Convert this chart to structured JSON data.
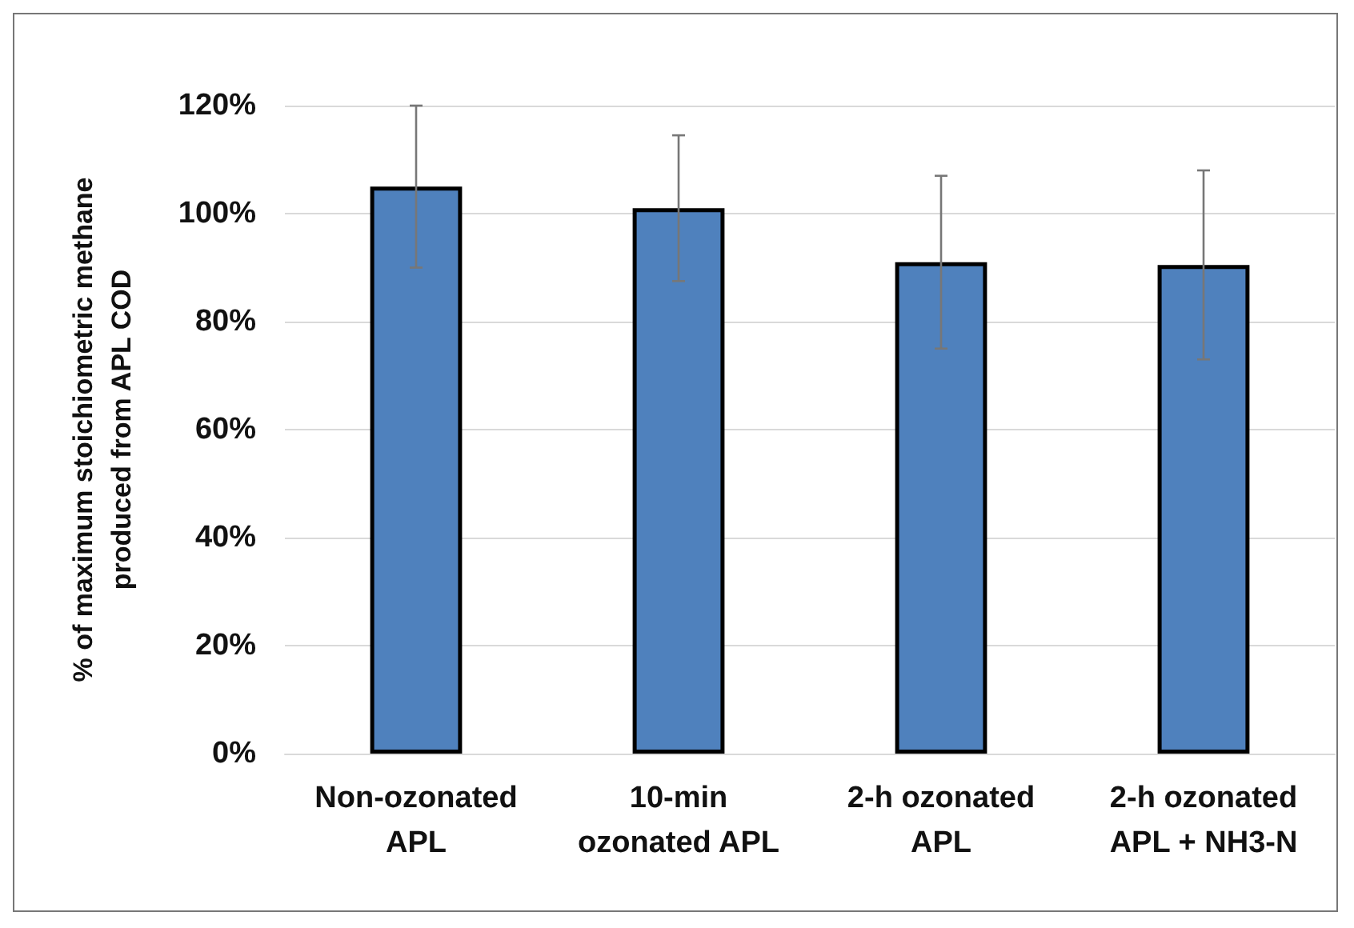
{
  "chart_data": {
    "type": "bar",
    "ylabel": "% of maximum stoichiometric methane\nproduced from APL COD",
    "categories": [
      "Non-ozonated\nAPL",
      "10-min\nozonated APL",
      "2-h ozonated\nAPL",
      "2-h ozonated\nAPL + NH3-N"
    ],
    "values": [
      105,
      101,
      91,
      90.5
    ],
    "color": "#4f81bd",
    "errors": [
      15,
      13.5,
      16,
      17.5
    ],
    "ylim": [
      0,
      120
    ],
    "yticks": [
      {
        "value": 0,
        "label": "0%"
      },
      {
        "value": 20,
        "label": "20%"
      },
      {
        "value": 40,
        "label": "40%"
      },
      {
        "value": 60,
        "label": "60%"
      },
      {
        "value": 80,
        "label": "80%"
      },
      {
        "value": 100,
        "label": "100%"
      },
      {
        "value": 120,
        "label": "120%"
      }
    ],
    "grid": "y"
  }
}
